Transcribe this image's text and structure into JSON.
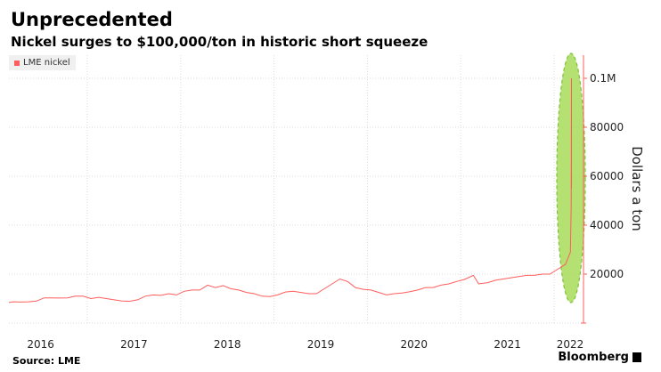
{
  "title": "Unprecedented",
  "subtitle": "Nickel surges to $100,000/ton in historic short squeeze",
  "source": "Source: LME",
  "brand": "Bloomberg",
  "chart_data": {
    "type": "line",
    "ylabel": "Dollars a ton",
    "ylim": [
      0,
      110000
    ],
    "yticks": [
      20000,
      40000,
      60000,
      80000,
      100000
    ],
    "ytick_labels": [
      "20000",
      "40000",
      "60000",
      "80000",
      "0.1M"
    ],
    "xtick_labels": [
      "2016",
      "2017",
      "2018",
      "2019",
      "2020",
      "2021",
      "2022"
    ],
    "grid": true,
    "legend_placement": "top-left",
    "annotation": "green dashed ellipse highlighting March 2022 spike",
    "colors": {
      "series": "#ff5c5c",
      "annotation": "#a8dc5a"
    },
    "series": [
      {
        "name": "LME nickel",
        "points": [
          [
            "2016-02-15",
            8400
          ],
          [
            "2016-03-15",
            8700
          ],
          [
            "2016-04-15",
            8600
          ],
          [
            "2016-05-15",
            8700
          ],
          [
            "2016-06-15",
            9000
          ],
          [
            "2016-07-15",
            10300
          ],
          [
            "2016-08-15",
            10300
          ],
          [
            "2016-09-15",
            10200
          ],
          [
            "2016-10-15",
            10300
          ],
          [
            "2016-11-15",
            11000
          ],
          [
            "2016-12-15",
            11000
          ],
          [
            "2017-01-15",
            10000
          ],
          [
            "2017-02-15",
            10500
          ],
          [
            "2017-03-15",
            10000
          ],
          [
            "2017-04-15",
            9500
          ],
          [
            "2017-05-15",
            9000
          ],
          [
            "2017-06-15",
            8900
          ],
          [
            "2017-07-15",
            9500
          ],
          [
            "2017-08-15",
            11000
          ],
          [
            "2017-09-15",
            11500
          ],
          [
            "2017-10-15",
            11300
          ],
          [
            "2017-11-15",
            12000
          ],
          [
            "2017-12-15",
            11500
          ],
          [
            "2018-01-15",
            13000
          ],
          [
            "2018-02-15",
            13500
          ],
          [
            "2018-03-15",
            13500
          ],
          [
            "2018-04-15",
            15500
          ],
          [
            "2018-05-15",
            14500
          ],
          [
            "2018-06-15",
            15300
          ],
          [
            "2018-07-15",
            14000
          ],
          [
            "2018-08-15",
            13500
          ],
          [
            "2018-09-15",
            12500
          ],
          [
            "2018-10-15",
            12000
          ],
          [
            "2018-11-15",
            11000
          ],
          [
            "2018-12-15",
            10800
          ],
          [
            "2019-01-15",
            11500
          ],
          [
            "2019-02-15",
            12700
          ],
          [
            "2019-03-15",
            13000
          ],
          [
            "2019-04-15",
            12500
          ],
          [
            "2019-05-15",
            12000
          ],
          [
            "2019-06-15",
            12000
          ],
          [
            "2019-07-15",
            14000
          ],
          [
            "2019-08-15",
            16000
          ],
          [
            "2019-09-15",
            18000
          ],
          [
            "2019-10-15",
            17000
          ],
          [
            "2019-11-15",
            14500
          ],
          [
            "2019-12-15",
            13800
          ],
          [
            "2020-01-15",
            13500
          ],
          [
            "2020-02-15",
            12500
          ],
          [
            "2020-03-15",
            11500
          ],
          [
            "2020-04-15",
            12000
          ],
          [
            "2020-05-15",
            12300
          ],
          [
            "2020-06-15",
            12800
          ],
          [
            "2020-07-15",
            13500
          ],
          [
            "2020-08-15",
            14500
          ],
          [
            "2020-09-15",
            14500
          ],
          [
            "2020-10-15",
            15500
          ],
          [
            "2020-11-15",
            16000
          ],
          [
            "2020-12-15",
            17000
          ],
          [
            "2021-01-15",
            17800
          ],
          [
            "2021-02-20",
            19500
          ],
          [
            "2021-03-10",
            16000
          ],
          [
            "2021-04-15",
            16500
          ],
          [
            "2021-05-15",
            17500
          ],
          [
            "2021-06-15",
            18000
          ],
          [
            "2021-07-15",
            18500
          ],
          [
            "2021-08-15",
            19000
          ],
          [
            "2021-09-15",
            19500
          ],
          [
            "2021-10-15",
            19500
          ],
          [
            "2021-11-15",
            20000
          ],
          [
            "2021-12-15",
            20000
          ],
          [
            "2022-01-15",
            22000
          ],
          [
            "2022-02-15",
            24000
          ],
          [
            "2022-03-04",
            29000
          ],
          [
            "2022-03-07",
            48000
          ],
          [
            "2022-03-08",
            100000
          ],
          [
            "2022-03-08",
            55000
          ]
        ]
      }
    ]
  }
}
